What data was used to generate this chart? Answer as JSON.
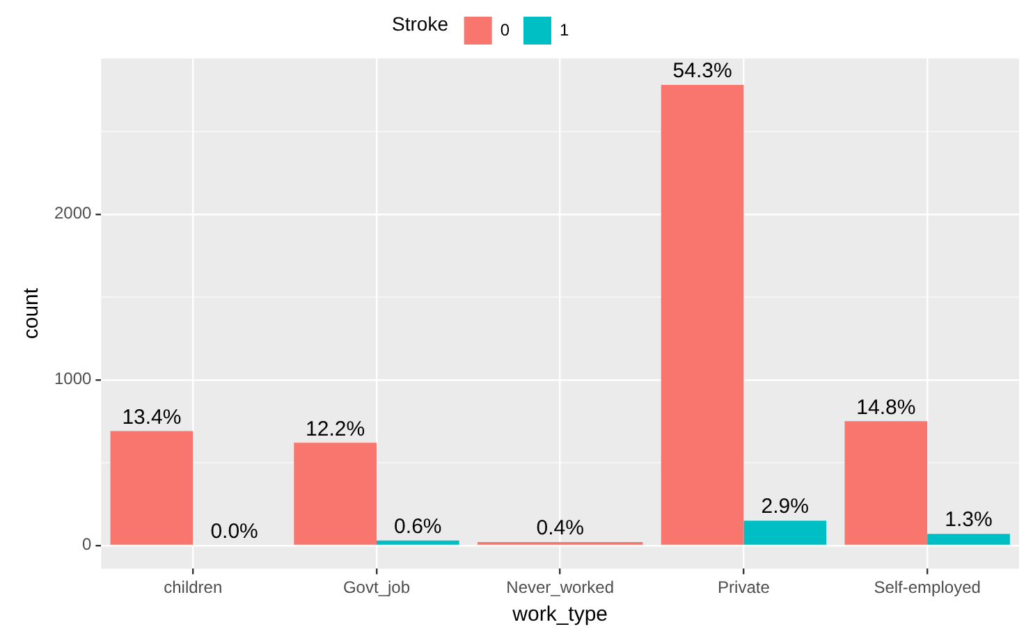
{
  "chart_data": {
    "type": "bar",
    "xlabel": "work_type",
    "ylabel": "count",
    "legend_title": "Stroke",
    "legend": "top",
    "categories": [
      "children",
      "Govt_job",
      "Never_worked",
      "Private",
      "Self-employed"
    ],
    "series": [
      {
        "name": "0",
        "color": "#f8766d",
        "values": [
          690,
          620,
          20,
          2780,
          750
        ]
      },
      {
        "name": "1",
        "color": "#00bfc4",
        "values": [
          0,
          30,
          null,
          150,
          70
        ]
      }
    ],
    "annotations": [
      {
        "text": "13.4%",
        "x": "children",
        "y": 690
      },
      {
        "text": "0.0%",
        "x": "children",
        "y": 0
      },
      {
        "text": "12.2%",
        "x": "Govt_job",
        "y": 620
      },
      {
        "text": "0.6%",
        "x": "Govt_job",
        "y": 30
      },
      {
        "text": "0.4%",
        "x": "Never_worked",
        "y": 20
      },
      {
        "text": "54.3%",
        "x": "Private",
        "y": 2780
      },
      {
        "text": "2.9%",
        "x": "Private",
        "y": 150
      },
      {
        "text": "14.8%",
        "x": "Self-employed",
        "y": 750
      },
      {
        "text": "1.3%",
        "x": "Self-employed",
        "y": 70
      }
    ],
    "ylim": [
      -140,
      2940
    ],
    "yticks": [
      0,
      {
        "value": 500,
        "label": null
      },
      1000,
      {
        "value": 1500,
        "label": null
      },
      2000,
      {
        "value": 2500,
        "label": null
      }
    ],
    "grid": true
  }
}
